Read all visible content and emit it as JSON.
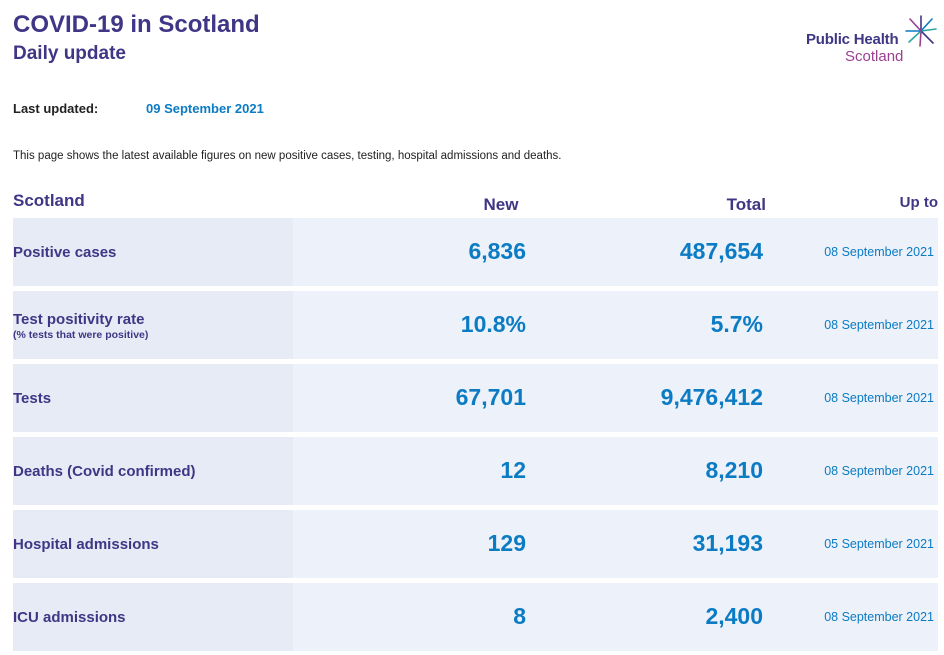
{
  "header": {
    "title": "COVID-19 in Scotland",
    "subtitle": "Daily update"
  },
  "logo": {
    "line1": "Public Health",
    "line2": "Scotland",
    "icon": "phs-star-icon"
  },
  "updated": {
    "label": "Last updated:",
    "value": "09 September 2021"
  },
  "intro": "This page shows the latest available figures on new positive cases, testing, hospital admissions and deaths.",
  "table": {
    "headers": {
      "region": "Scotland",
      "new": "New",
      "total": "Total",
      "up_to": "Up to"
    },
    "rows": [
      {
        "label": "Positive cases",
        "sublabel": "",
        "new": "6,836",
        "total": "487,654",
        "date": "08 September 2021"
      },
      {
        "label": "Test positivity rate",
        "sublabel": "(% tests that were positive)",
        "new": "10.8%",
        "total": "5.7%",
        "date": "08 September 2021"
      },
      {
        "label": "Tests",
        "sublabel": "",
        "new": "67,701",
        "total": "9,476,412",
        "date": "08 September 2021"
      },
      {
        "label": "Deaths (Covid confirmed)",
        "sublabel": "",
        "new": "12",
        "total": "8,210",
        "date": "08 September 2021"
      },
      {
        "label": "Hospital admissions",
        "sublabel": "",
        "new": "129",
        "total": "31,193",
        "date": "05 September 2021"
      },
      {
        "label": "ICU admissions",
        "sublabel": "",
        "new": "8",
        "total": "2,400",
        "date": "08 September 2021"
      }
    ]
  },
  "colors": {
    "title": "#3f3685",
    "accent": "#0b7bc4",
    "logo_secondary": "#9b3f8f",
    "row_bg": "#edf1f9",
    "label_bg": "#e6ebf6"
  }
}
